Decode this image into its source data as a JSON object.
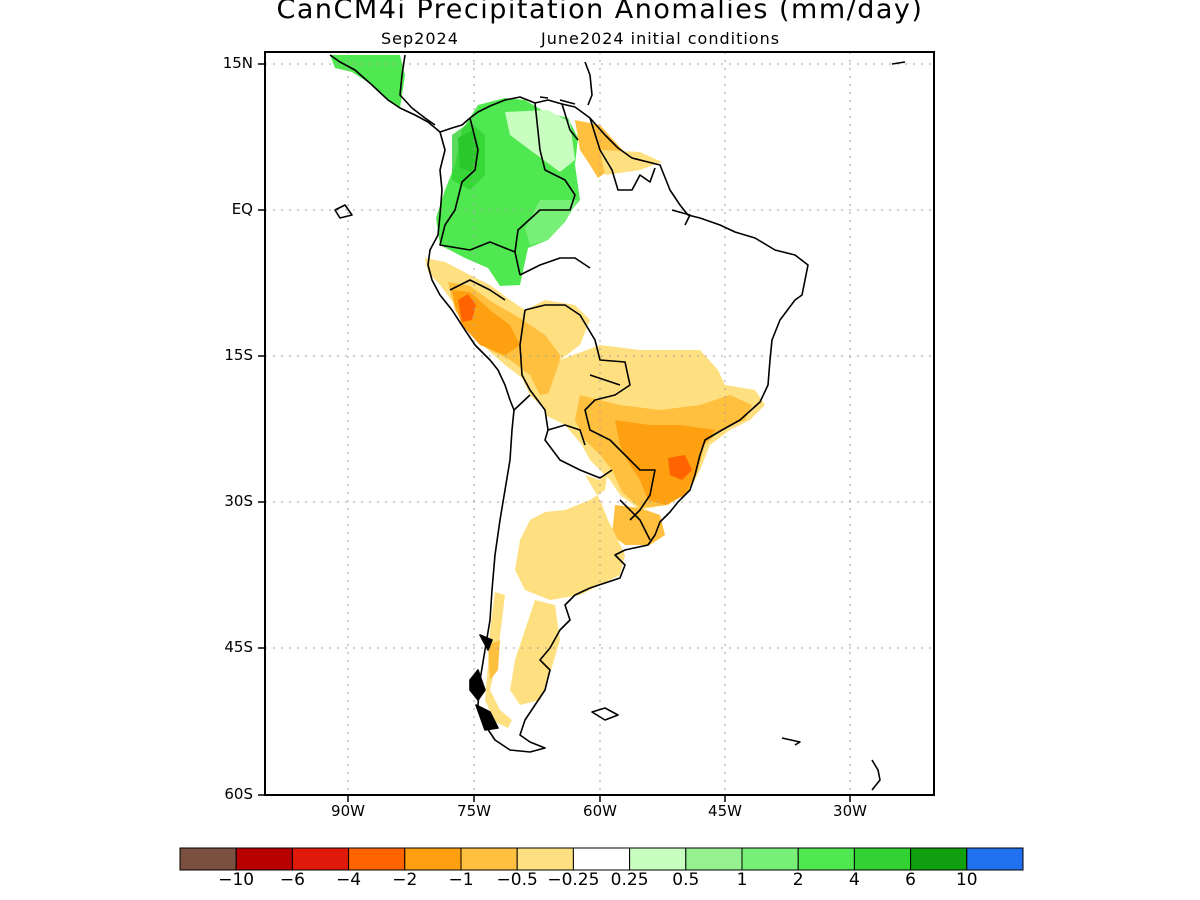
{
  "header": {
    "title": "CanCM4i Precipitation Anomalies (mm/day)",
    "month": "Sep2024",
    "init": "June2024 initial conditions"
  },
  "map": {
    "lon_range": [
      -100,
      -20
    ],
    "lat_range": [
      -60,
      15
    ],
    "lat_ticks": [
      {
        "value": 15,
        "label": "15N"
      },
      {
        "value": 0,
        "label": "EQ"
      },
      {
        "value": -15,
        "label": "15S"
      },
      {
        "value": -30,
        "label": "30S"
      },
      {
        "value": -45,
        "label": "45S"
      },
      {
        "value": -60,
        "label": "60S"
      }
    ],
    "lon_ticks": [
      {
        "value": -90,
        "label": "90W"
      },
      {
        "value": -75,
        "label": "75W"
      },
      {
        "value": -60,
        "label": "60W"
      },
      {
        "value": -45,
        "label": "45W"
      },
      {
        "value": -30,
        "label": "30W"
      }
    ]
  },
  "colorbar": {
    "colors": [
      "#7a5040",
      "#b80000",
      "#e01a0a",
      "#ff6400",
      "#ffa010",
      "#ffc040",
      "#ffe080",
      "#ffffff",
      "#c8ffc0",
      "#96f090",
      "#78f078",
      "#50e850",
      "#32d232",
      "#10a010",
      "#2070f0"
    ],
    "labels": [
      "−10",
      "−6",
      "−4",
      "−2",
      "−1",
      "−0.5",
      "−0.25",
      "0.25",
      "0.5",
      "1",
      "2",
      "4",
      "6",
      "10"
    ]
  }
}
